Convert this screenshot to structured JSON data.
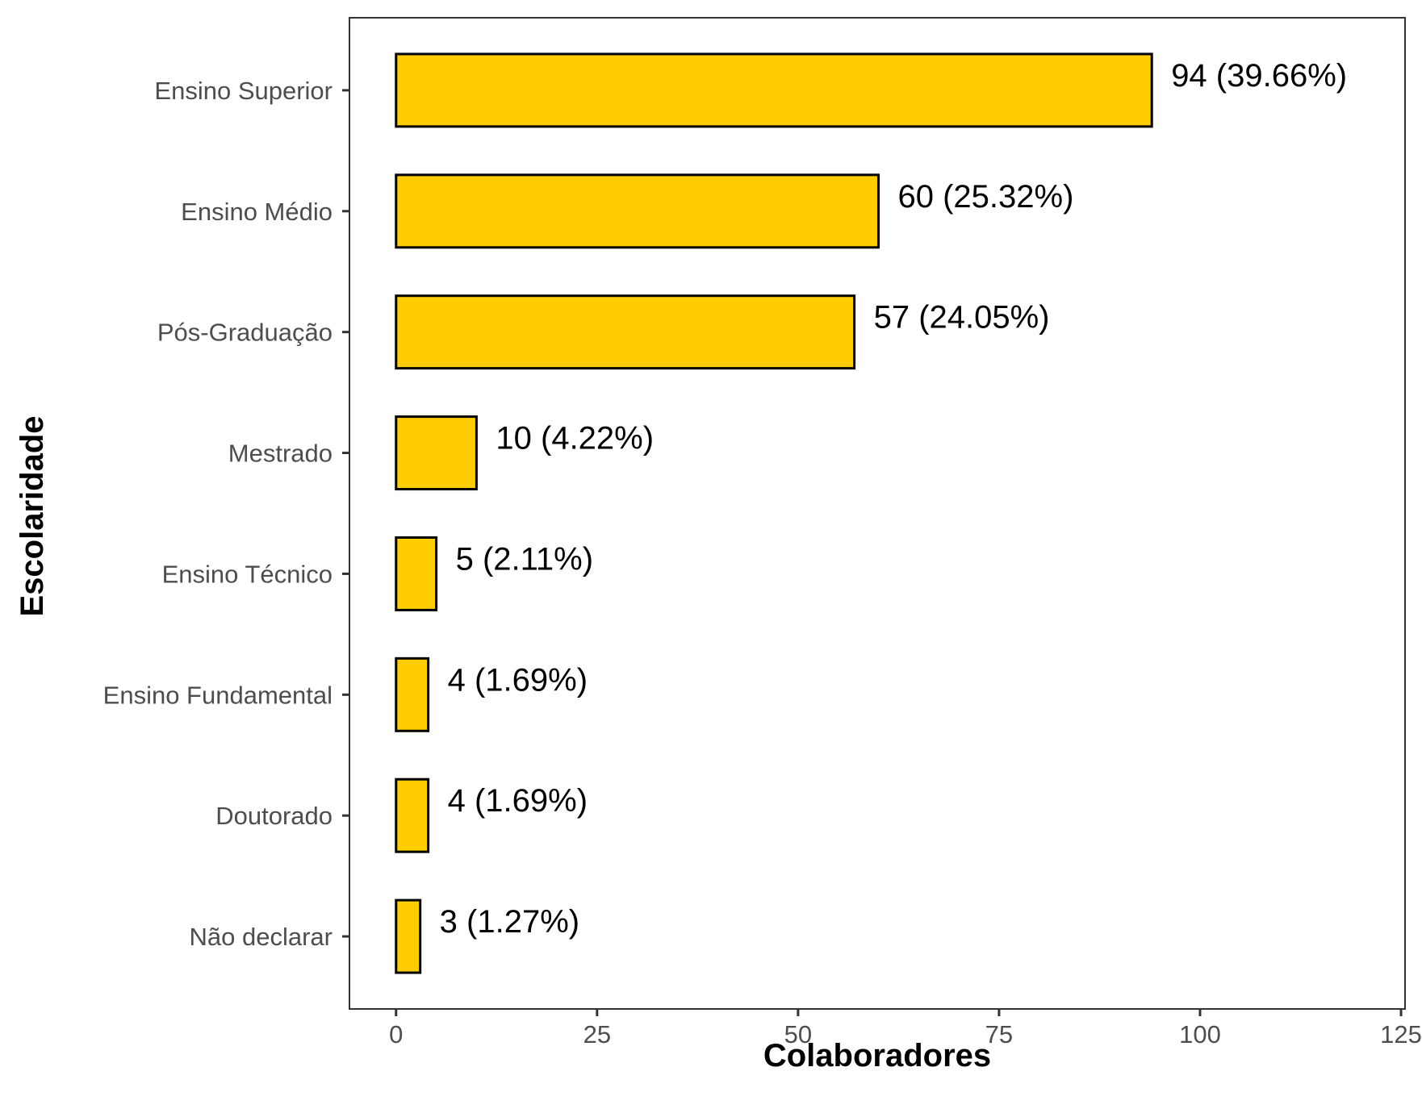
{
  "chart_data": {
    "type": "bar",
    "orientation": "horizontal",
    "categories": [
      "Ensino Superior",
      "Ensino Médio",
      "Pós-Graduação",
      "Mestrado",
      "Ensino Técnico",
      "Ensino Fundamental",
      "Doutorado",
      "Não declarar"
    ],
    "values": [
      94,
      60,
      57,
      10,
      5,
      4,
      4,
      3
    ],
    "data_labels": [
      "94 (39.66%)",
      "60 (25.32%)",
      "57 (24.05%)",
      "10 (4.22%)",
      "5 (2.11%)",
      "4 (1.69%)",
      "4 (1.69%)",
      "3 (1.27%)"
    ],
    "xlabel": "Colaboradores",
    "ylabel": "Escolaridade",
    "xlim": [
      -5.8,
      125.5
    ],
    "xticks": [
      0,
      25,
      50,
      75,
      100,
      125
    ],
    "grid": false,
    "legend": "none",
    "bar_color": "#FFCD00",
    "bar_edge_color": "#000000"
  }
}
